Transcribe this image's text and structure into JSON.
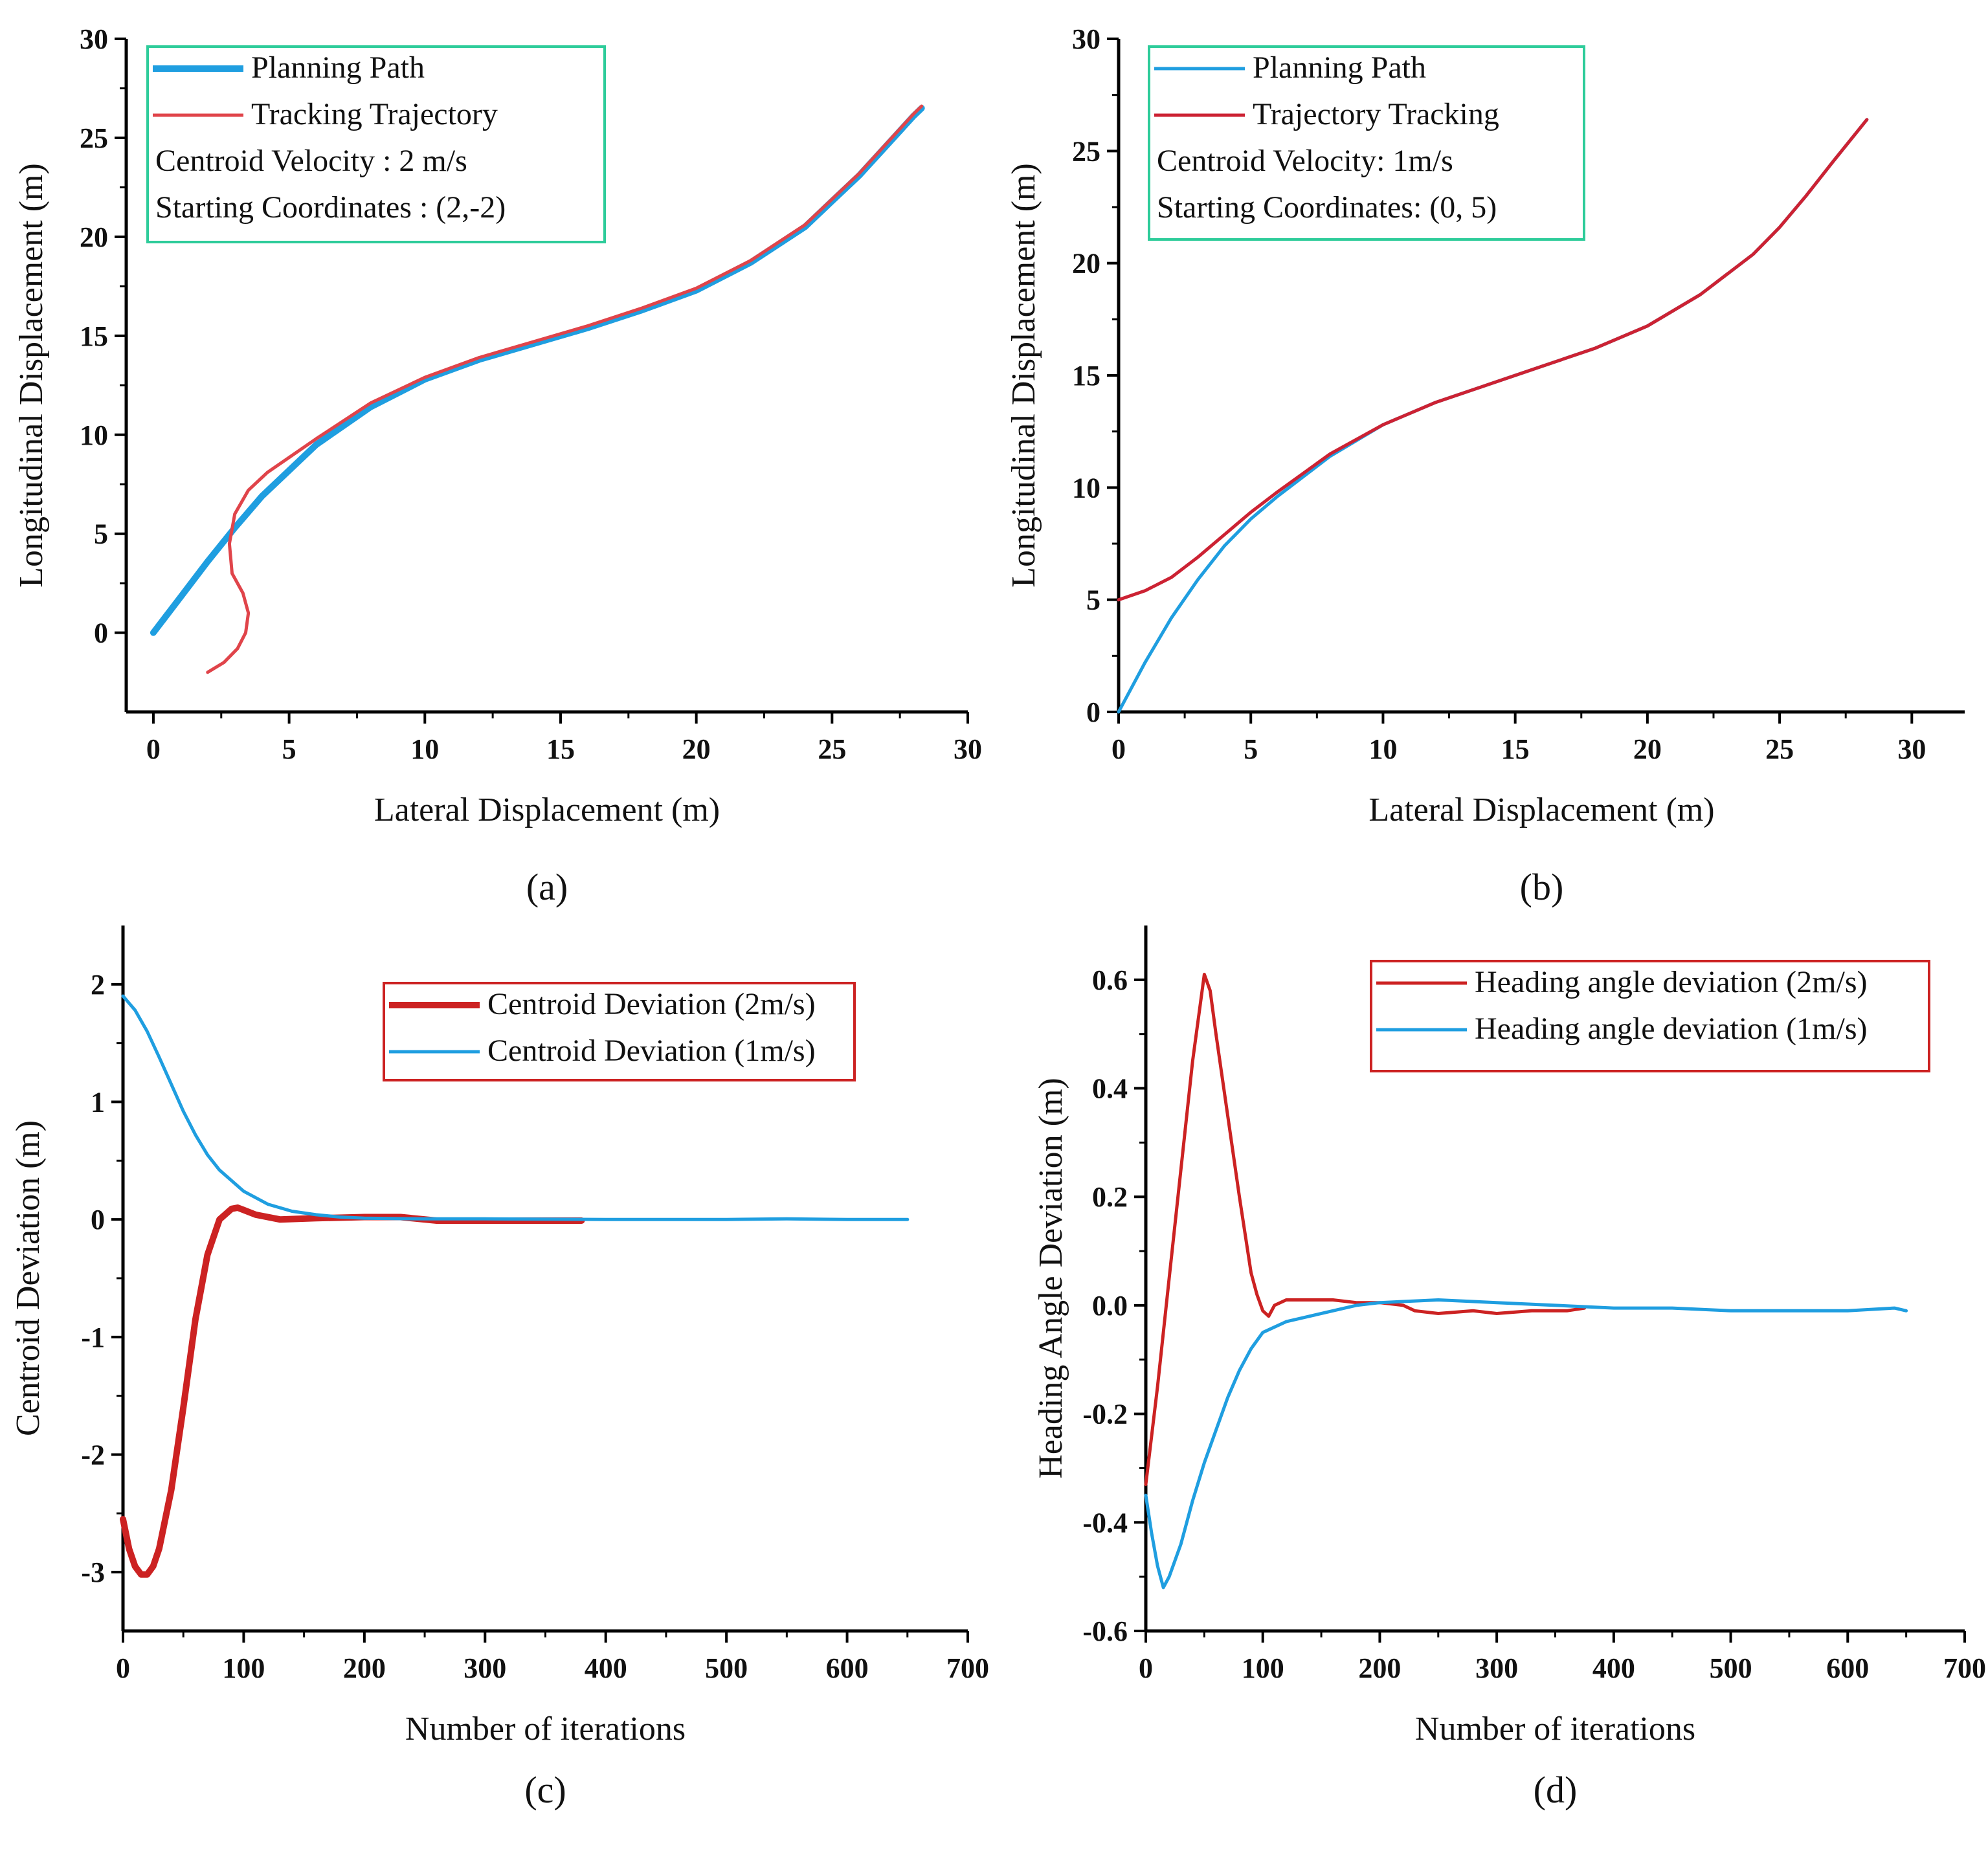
{
  "figure": {
    "panels_description": "Four-panel figure of path tracking results"
  },
  "chart_data": [
    {
      "id": "a",
      "type": "line",
      "caption": "(a)",
      "xlabel": "Lateral Displacement (m)",
      "ylabel": "Longitudinal Displacement (m)",
      "xlim": [
        -1,
        30
      ],
      "ylim": [
        -4,
        30
      ],
      "xticks": [
        0,
        5,
        10,
        15,
        20,
        25,
        30
      ],
      "yticks": [
        0,
        5,
        10,
        15,
        20,
        25,
        30
      ],
      "legend": {
        "placement": "top-left",
        "border_color": "#2ecc9a",
        "entries": [
          "Planning Path",
          "Tracking Trajectory"
        ],
        "notes": [
          "Centroid Velocity : 2 m/s",
          "Starting Coordinates :  (2,-2)"
        ]
      },
      "series": [
        {
          "name": "Planning Path",
          "color": "#1f9ee0",
          "width": "thick",
          "x": [
            0,
            1,
            2,
            3,
            4,
            6,
            8,
            10,
            12,
            14,
            16,
            18,
            20,
            22,
            24,
            25,
            26,
            27,
            28,
            28.3
          ],
          "y": [
            0,
            1.8,
            3.6,
            5.3,
            6.9,
            9.5,
            11.4,
            12.8,
            13.8,
            14.6,
            15.4,
            16.3,
            17.3,
            18.7,
            20.5,
            21.8,
            23.1,
            24.6,
            26.1,
            26.5
          ]
        },
        {
          "name": "Tracking Trajectory",
          "color": "#e0444a",
          "width": "thin",
          "x": [
            2,
            2.6,
            3.1,
            3.4,
            3.5,
            3.3,
            2.9,
            2.8,
            3.0,
            3.5,
            4.2,
            6,
            8,
            10,
            12,
            14,
            16,
            18,
            20,
            22,
            24,
            25,
            26,
            27,
            28,
            28.3
          ],
          "y": [
            -2,
            -1.5,
            -0.8,
            0,
            1,
            2,
            3,
            4.5,
            6,
            7.2,
            8.1,
            9.8,
            11.6,
            12.9,
            13.9,
            14.7,
            15.5,
            16.4,
            17.4,
            18.8,
            20.6,
            21.9,
            23.2,
            24.7,
            26.2,
            26.6
          ]
        }
      ]
    },
    {
      "id": "b",
      "type": "line",
      "caption": "(b)",
      "xlabel": "Lateral Displacement (m)",
      "ylabel": "Longitudinal Displacement (m)",
      "xlim": [
        0,
        32
      ],
      "ylim": [
        0,
        30
      ],
      "xticks": [
        0,
        5,
        10,
        15,
        20,
        25,
        30
      ],
      "yticks": [
        0,
        5,
        10,
        15,
        20,
        25,
        30
      ],
      "legend": {
        "placement": "top-left",
        "border_color": "#2ecc9a",
        "entries": [
          "Planning Path",
          "Trajectory Tracking"
        ],
        "notes": [
          "Centroid Velocity: 1m/s",
          "Starting Coordinates: (0, 5)"
        ]
      },
      "series": [
        {
          "name": "Planning Path",
          "color": "#1f9ee0",
          "width": "thin",
          "x": [
            0,
            1,
            2,
            3,
            4,
            5,
            6,
            8,
            10,
            12,
            14,
            16,
            18,
            20,
            22,
            24,
            25,
            26,
            27,
            28.3
          ],
          "y": [
            0,
            2.2,
            4.2,
            5.9,
            7.4,
            8.6,
            9.6,
            11.4,
            12.8,
            13.8,
            14.6,
            15.4,
            16.2,
            17.2,
            18.6,
            20.4,
            21.6,
            23.0,
            24.5,
            26.4
          ]
        },
        {
          "name": "Trajectory Tracking",
          "color": "#cc2233",
          "width": "thin",
          "x": [
            0,
            1,
            2,
            3,
            4,
            5,
            6,
            8,
            10,
            12,
            14,
            16,
            18,
            20,
            22,
            24,
            25,
            26,
            27,
            28.3
          ],
          "y": [
            5.0,
            5.4,
            6.0,
            6.9,
            7.9,
            8.9,
            9.8,
            11.5,
            12.8,
            13.8,
            14.6,
            15.4,
            16.2,
            17.2,
            18.6,
            20.4,
            21.6,
            23.0,
            24.5,
            26.4
          ]
        }
      ]
    },
    {
      "id": "c",
      "type": "line",
      "caption": "(c)",
      "xlabel": "Number of iterations",
      "ylabel": "Centroid Deviation (m)",
      "xlim": [
        0,
        700
      ],
      "ylim": [
        -3.5,
        2.5
      ],
      "xticks": [
        0,
        100,
        200,
        300,
        400,
        500,
        600,
        700
      ],
      "yticks": [
        -3,
        -2,
        -1,
        0,
        1,
        2
      ],
      "legend": {
        "placement": "top-right",
        "border_color": "#cc2222",
        "entries": [
          "Centroid Deviation (2m/s)",
          "Centroid Deviation (1m/s)"
        ],
        "notes": []
      },
      "series": [
        {
          "name": "Centroid Deviation (2m/s)",
          "color": "#cc2222",
          "width": "thick",
          "x": [
            0,
            5,
            10,
            15,
            20,
            25,
            30,
            40,
            50,
            60,
            70,
            80,
            90,
            95,
            100,
            110,
            130,
            160,
            200,
            230,
            260,
            300,
            350,
            380
          ],
          "y": [
            -2.55,
            -2.8,
            -2.95,
            -3.02,
            -3.02,
            -2.95,
            -2.8,
            -2.3,
            -1.6,
            -0.85,
            -0.3,
            0.0,
            0.09,
            0.1,
            0.08,
            0.04,
            0.0,
            0.01,
            0.02,
            0.02,
            -0.01,
            -0.01,
            -0.01,
            -0.01
          ]
        },
        {
          "name": "Centroid Deviation (1m/s)",
          "color": "#1f9ee0",
          "width": "thin",
          "x": [
            0,
            10,
            20,
            30,
            40,
            50,
            60,
            70,
            80,
            100,
            120,
            140,
            160,
            180,
            200,
            250,
            300,
            400,
            500,
            550,
            600,
            650
          ],
          "y": [
            1.9,
            1.78,
            1.6,
            1.38,
            1.15,
            0.92,
            0.72,
            0.55,
            0.42,
            0.24,
            0.13,
            0.07,
            0.04,
            0.02,
            0.01,
            0.005,
            0.005,
            0.0,
            0.0,
            0.005,
            0.0,
            0.0
          ]
        }
      ]
    },
    {
      "id": "d",
      "type": "line",
      "caption": "(d)",
      "xlabel": "Number of iterations",
      "ylabel": "Heading Angle Deviation (m)",
      "xlim": [
        0,
        700
      ],
      "ylim": [
        -0.6,
        0.7
      ],
      "xticks": [
        0,
        100,
        200,
        300,
        400,
        500,
        600,
        700
      ],
      "yticks": [
        -0.6,
        -0.4,
        -0.2,
        0.0,
        0.2,
        0.4,
        0.6
      ],
      "legend": {
        "placement": "top-right",
        "border_color": "#cc2222",
        "entries": [
          "Heading angle deviation (2m/s)",
          "Heading angle deviation (1m/s)"
        ],
        "notes": []
      },
      "series": [
        {
          "name": "Heading angle deviation (2m/s)",
          "color": "#cc2222",
          "width": "thin",
          "x": [
            0,
            10,
            20,
            30,
            40,
            50,
            55,
            60,
            70,
            80,
            90,
            95,
            100,
            105,
            110,
            120,
            140,
            160,
            180,
            200,
            220,
            230,
            250,
            280,
            300,
            330,
            360,
            375
          ],
          "y": [
            -0.33,
            -0.15,
            0.05,
            0.25,
            0.45,
            0.61,
            0.58,
            0.5,
            0.35,
            0.2,
            0.06,
            0.02,
            -0.01,
            -0.02,
            0.0,
            0.01,
            0.01,
            0.01,
            0.005,
            0.005,
            0.0,
            -0.01,
            -0.015,
            -0.01,
            -0.015,
            -0.01,
            -0.01,
            -0.005
          ]
        },
        {
          "name": "Heading angle deviation (1m/s)",
          "color": "#1f9ee0",
          "width": "thin",
          "x": [
            0,
            5,
            10,
            15,
            20,
            30,
            40,
            50,
            60,
            70,
            80,
            90,
            100,
            120,
            140,
            160,
            180,
            200,
            250,
            300,
            350,
            400,
            450,
            500,
            550,
            600,
            640,
            650
          ],
          "y": [
            -0.35,
            -0.42,
            -0.48,
            -0.52,
            -0.5,
            -0.44,
            -0.36,
            -0.29,
            -0.23,
            -0.17,
            -0.12,
            -0.08,
            -0.05,
            -0.03,
            -0.02,
            -0.01,
            0.0,
            0.005,
            0.01,
            0.005,
            0.0,
            -0.005,
            -0.005,
            -0.01,
            -0.01,
            -0.01,
            -0.005,
            -0.01
          ]
        }
      ]
    }
  ]
}
